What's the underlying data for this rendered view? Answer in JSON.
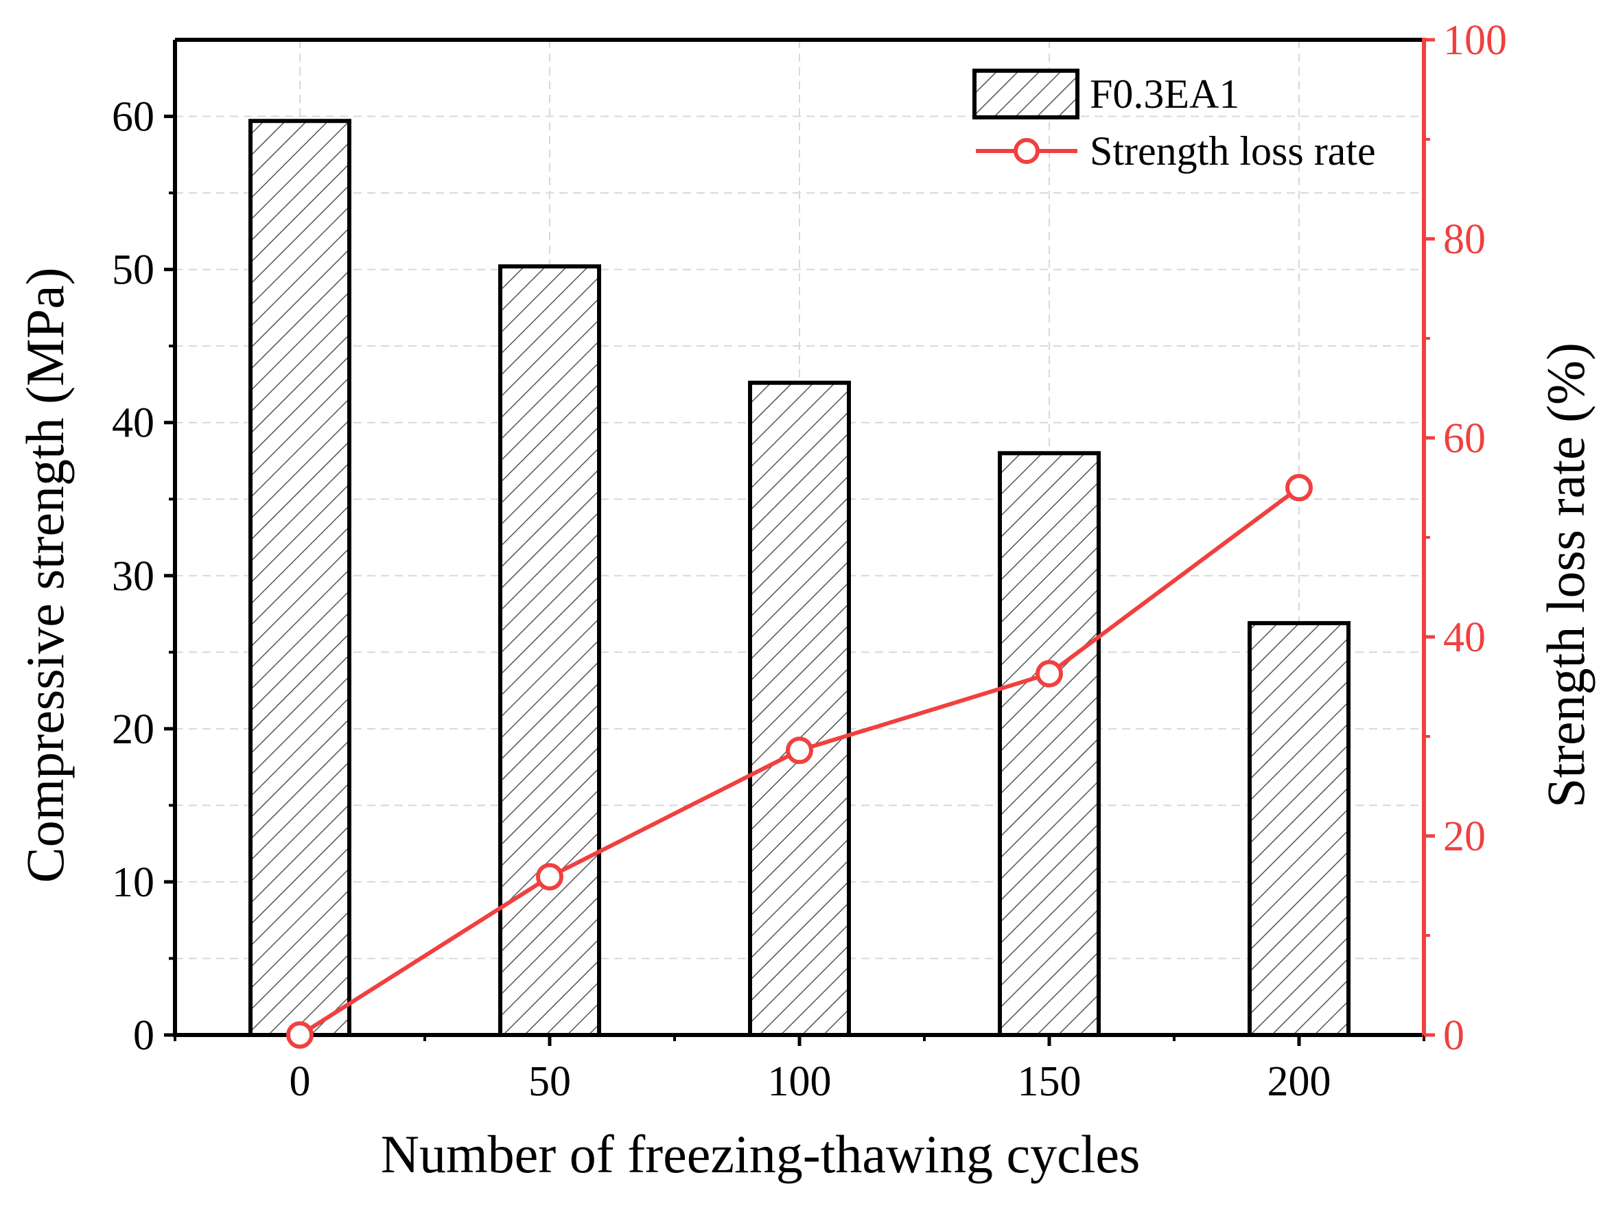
{
  "chart_data": {
    "type": "bar",
    "xlabel": "Number of freezing-thawing cycles",
    "ylabel": "Compressive strength (MPa)",
    "y2label": "Strength loss rate (%)",
    "categories": [
      "0",
      "50",
      "100",
      "150",
      "200"
    ],
    "x_ticks": [
      "0",
      "50",
      "100",
      "150",
      "200"
    ],
    "ylim": [
      0,
      65
    ],
    "y_ticks": [
      0,
      10,
      20,
      30,
      40,
      50,
      60
    ],
    "y2lim": [
      0,
      100
    ],
    "y2_ticks": [
      0,
      20,
      40,
      60,
      80,
      100
    ],
    "grid": true,
    "legend_position": "top-right",
    "series": [
      {
        "name": "F0.3EA1",
        "type": "bar",
        "axis": "left",
        "pattern": "diagonal-hatch",
        "values": [
          59.7,
          50.2,
          42.6,
          38.0,
          26.9
        ]
      },
      {
        "name": "Strength loss rate",
        "type": "line",
        "axis": "right",
        "marker": "open-circle",
        "color": "#f04040",
        "values": [
          0,
          15.9,
          28.6,
          36.3,
          55.0
        ]
      }
    ]
  }
}
